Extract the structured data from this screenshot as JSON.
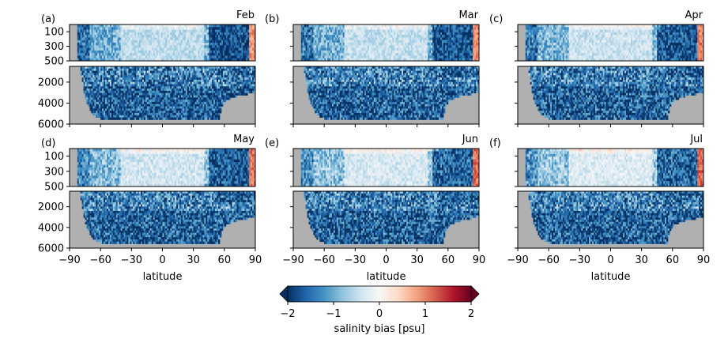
{
  "figure": {
    "xlabel": "latitude",
    "colorbar": {
      "label": "salinity bias [psu]",
      "ticks": [
        "−2",
        "−1",
        "0",
        "1",
        "2"
      ],
      "range": [
        -2,
        2
      ],
      "colormap": [
        "#053061",
        "#2166ac",
        "#4393c3",
        "#92c5de",
        "#d1e5f0",
        "#f7f7f7",
        "#fddbc7",
        "#f4a582",
        "#d6604d",
        "#b2182b",
        "#67001f"
      ],
      "extend": "both"
    },
    "land_color": "#b0b0b0"
  },
  "chart_data": {
    "type": "heatmap",
    "x_ticks": [
      -90,
      -60,
      -30,
      0,
      30,
      60,
      90
    ],
    "x_tick_labels": [
      "−90",
      "−60",
      "−30",
      "0",
      "30",
      "60",
      "90"
    ],
    "xlim": [
      -90,
      90
    ],
    "upper_ylim": [
      500,
      0
    ],
    "upper_yticks": [
      100,
      300,
      500
    ],
    "lower_ylim": [
      6000,
      500
    ],
    "lower_yticks": [
      2000,
      4000,
      6000
    ],
    "zlim": [
      -2,
      2
    ],
    "panels": [
      {
        "tag": "(a)",
        "month": "Feb"
      },
      {
        "tag": "(b)",
        "month": "Mar"
      },
      {
        "tag": "(c)",
        "month": "Apr"
      },
      {
        "tag": "(d)",
        "month": "May"
      },
      {
        "tag": "(e)",
        "month": "Jun"
      },
      {
        "tag": "(f)",
        "month": "Jul"
      }
    ],
    "bathymetry_depth_by_latitude": [
      {
        "lat": -90,
        "depth": 0
      },
      {
        "lat": -80,
        "depth": 500
      },
      {
        "lat": -76,
        "depth": 3000
      },
      {
        "lat": -72,
        "depth": 4300
      },
      {
        "lat": -66,
        "depth": 5200
      },
      {
        "lat": -60,
        "depth": 5500
      },
      {
        "lat": 0,
        "depth": 5500
      },
      {
        "lat": 55,
        "depth": 5500
      },
      {
        "lat": 58,
        "depth": 4200
      },
      {
        "lat": 62,
        "depth": 3700
      },
      {
        "lat": 70,
        "depth": 3400
      },
      {
        "lat": 80,
        "depth": 3200
      },
      {
        "lat": 89,
        "depth": 3000
      }
    ]
  }
}
